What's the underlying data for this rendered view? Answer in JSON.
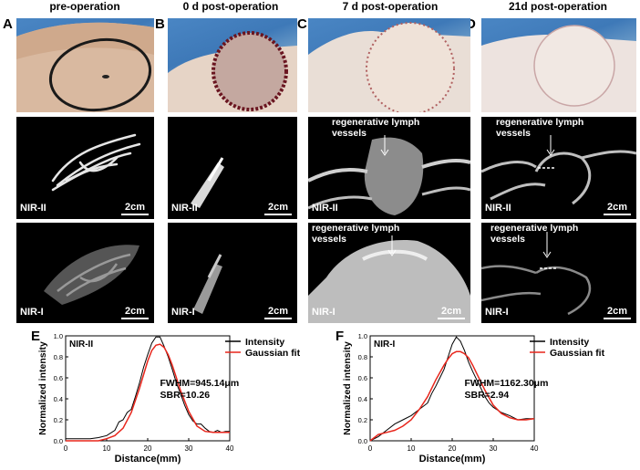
{
  "columns": [
    {
      "letter": "A",
      "title": "pre-operation"
    },
    {
      "letter": "B",
      "title": "0 d post-operation"
    },
    {
      "letter": "C",
      "title": "7 d post-operation"
    },
    {
      "letter": "D",
      "title": "21d post-operation"
    }
  ],
  "row_labels": {
    "nir2": "NIR-II",
    "nir1": "NIR-I"
  },
  "scale_bar": "2cm",
  "annotation": "regenerative lymph vessels",
  "annotation_lines": [
    "regenerative lymph",
    "vessels"
  ],
  "chart_data": [
    {
      "type": "line",
      "panel": "E",
      "panel_title": "NIR-II",
      "xlabel": "Distance(mm)",
      "ylabel": "Normalized intensity",
      "xlim": [
        0,
        40
      ],
      "ylim": [
        0,
        1.0
      ],
      "xticks": [
        0,
        10,
        20,
        30,
        40
      ],
      "yticks": [
        0.0,
        0.2,
        0.4,
        0.6,
        0.8,
        1.0
      ],
      "legend_position": "top-right",
      "series": [
        {
          "name": "Intensity",
          "color": "#000000",
          "x": [
            0,
            2,
            4,
            6,
            8,
            10,
            12,
            13,
            14,
            15,
            16,
            17,
            18,
            19,
            20,
            21,
            22,
            23,
            24,
            25,
            26,
            27,
            28,
            29,
            30,
            31,
            32,
            33,
            34,
            35,
            36,
            37,
            38,
            39,
            40
          ],
          "y": [
            0.02,
            0.02,
            0.02,
            0.02,
            0.03,
            0.05,
            0.1,
            0.18,
            0.2,
            0.27,
            0.3,
            0.42,
            0.55,
            0.7,
            0.82,
            0.93,
            0.99,
            0.99,
            0.9,
            0.8,
            0.68,
            0.55,
            0.45,
            0.34,
            0.25,
            0.19,
            0.16,
            0.16,
            0.12,
            0.09,
            0.08,
            0.1,
            0.08,
            0.09,
            0.09
          ]
        },
        {
          "name": "Gaussian fit",
          "color": "#e8261c",
          "x": [
            0,
            2,
            4,
            6,
            8,
            10,
            12,
            14,
            16,
            18,
            19,
            20,
            21,
            22,
            23,
            24,
            25,
            26,
            27,
            28,
            30,
            32,
            34,
            36,
            38,
            40
          ],
          "y": [
            0.0,
            0.0,
            0.0,
            0.0,
            0.0,
            0.02,
            0.05,
            0.12,
            0.27,
            0.5,
            0.63,
            0.76,
            0.86,
            0.91,
            0.92,
            0.89,
            0.82,
            0.72,
            0.6,
            0.48,
            0.28,
            0.14,
            0.09,
            0.08,
            0.08,
            0.08
          ]
        }
      ],
      "annotations": [
        "FWHM=945.14μm",
        "SBR=10.26"
      ]
    },
    {
      "type": "line",
      "panel": "F",
      "panel_title": "NIR-I",
      "xlabel": "Distance(mm)",
      "ylabel": "Normalized intensity",
      "xlim": [
        0,
        40
      ],
      "ylim": [
        0,
        1.0
      ],
      "xticks": [
        0,
        10,
        20,
        30,
        40
      ],
      "yticks": [
        0.0,
        0.2,
        0.4,
        0.6,
        0.8,
        1.0
      ],
      "legend_position": "top-right",
      "series": [
        {
          "name": "Intensity",
          "color": "#000000",
          "x": [
            0,
            2,
            4,
            6,
            8,
            10,
            12,
            14,
            15,
            16,
            17,
            18,
            19,
            20,
            21,
            22,
            23,
            24,
            25,
            26,
            27,
            28,
            29,
            30,
            32,
            34,
            36,
            38,
            40
          ],
          "y": [
            0.0,
            0.04,
            0.1,
            0.16,
            0.2,
            0.24,
            0.3,
            0.36,
            0.45,
            0.52,
            0.6,
            0.68,
            0.8,
            0.92,
            0.99,
            0.95,
            0.86,
            0.75,
            0.66,
            0.58,
            0.5,
            0.42,
            0.36,
            0.32,
            0.27,
            0.24,
            0.2,
            0.21,
            0.21
          ]
        },
        {
          "name": "Gaussian fit",
          "color": "#e8261c",
          "x": [
            0,
            2,
            4,
            6,
            8,
            10,
            12,
            14,
            16,
            18,
            19,
            20,
            21,
            22,
            23,
            24,
            25,
            26,
            27,
            28,
            30,
            32,
            34,
            36,
            38,
            40
          ],
          "y": [
            0.0,
            0.06,
            0.08,
            0.1,
            0.14,
            0.2,
            0.3,
            0.42,
            0.58,
            0.72,
            0.78,
            0.83,
            0.85,
            0.85,
            0.83,
            0.79,
            0.72,
            0.64,
            0.56,
            0.48,
            0.34,
            0.26,
            0.22,
            0.2,
            0.2,
            0.21
          ]
        }
      ],
      "annotations": [
        "FWHM=1162.30μm",
        "SBR=2.94"
      ]
    }
  ]
}
